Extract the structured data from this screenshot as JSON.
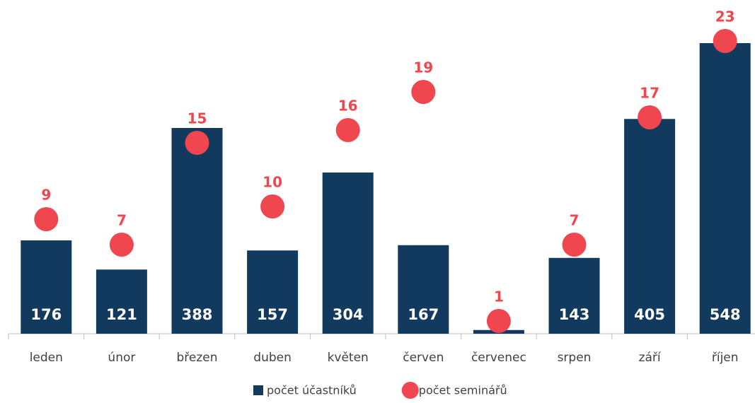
{
  "chart_data": {
    "type": "bar",
    "categories": [
      "leden",
      "únor",
      "březen",
      "duben",
      "květen",
      "červen",
      "červenec",
      "srpen",
      "září",
      "říjen"
    ],
    "series": [
      {
        "name": "počet účastníků",
        "type": "bar",
        "color": "#123a5e",
        "values": [
          176,
          121,
          388,
          157,
          304,
          167,
          7,
          143,
          405,
          548
        ]
      },
      {
        "name": "počet seminářů",
        "type": "scatter",
        "axis": "y2",
        "color": "#f0464f",
        "values": [
          9,
          7,
          15,
          10,
          16,
          19,
          1,
          7,
          17,
          23
        ]
      }
    ],
    "ylim": [
      0,
      600
    ],
    "y2lim": [
      0,
      25
    ],
    "legend": "bottom"
  }
}
